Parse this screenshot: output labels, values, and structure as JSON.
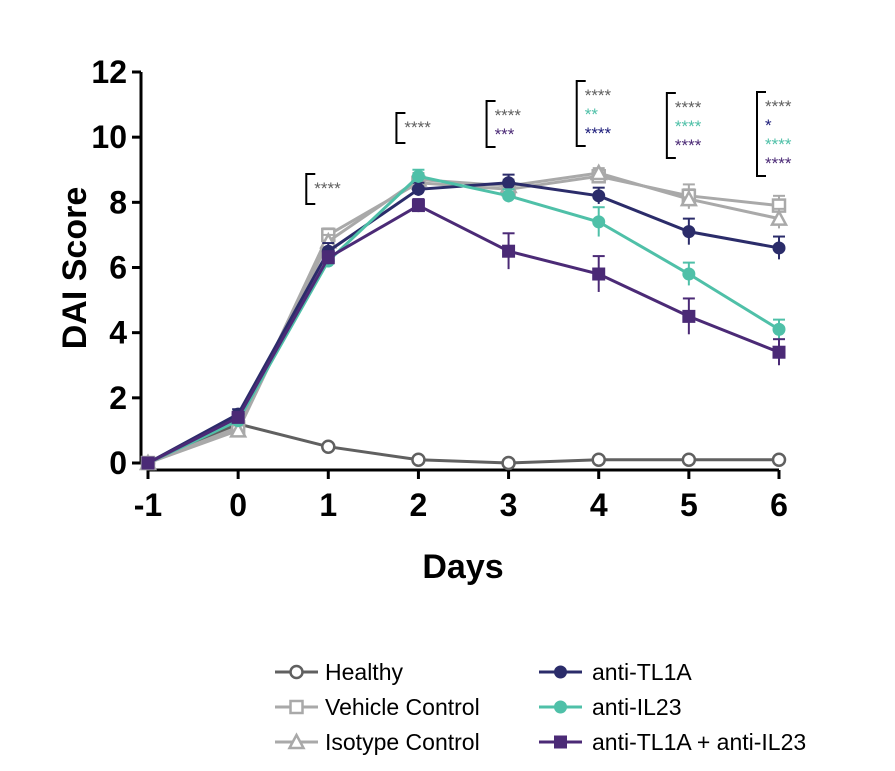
{
  "chart_data": {
    "type": "line",
    "xlabel": "Days",
    "ylabel": "DAI Score",
    "x_ticks": [
      "-1",
      "0",
      "1",
      "2",
      "3",
      "4",
      "5",
      "6"
    ],
    "y_ticks": [
      "0",
      "2",
      "4",
      "6",
      "8",
      "10",
      "12"
    ],
    "xlim": [
      -1,
      6
    ],
    "ylim": [
      0,
      12
    ],
    "x": [
      -1,
      0,
      1,
      2,
      3,
      4,
      5,
      6
    ],
    "series": [
      {
        "name": "Healthy",
        "color": "#606060",
        "marker": "circle-open",
        "values": [
          0,
          1.2,
          0.5,
          0.1,
          0,
          0.1,
          0.1,
          0.1
        ],
        "errors": [
          0,
          0,
          0,
          0,
          0,
          0,
          0,
          0
        ]
      },
      {
        "name": "Vehicle Control",
        "color": "#a9a9a9",
        "marker": "square-open",
        "values": [
          0,
          1.1,
          7.0,
          8.6,
          8.4,
          8.8,
          8.2,
          7.9
        ],
        "errors": [
          0,
          0.15,
          0.2,
          0.2,
          0.2,
          0.15,
          0.35,
          0.3
        ]
      },
      {
        "name": "Isotype Control",
        "color": "#a9a9a9",
        "marker": "triangle-open",
        "values": [
          0,
          1.0,
          6.8,
          8.7,
          8.5,
          8.9,
          8.1,
          7.5
        ],
        "errors": [
          0,
          0.15,
          0.2,
          0.2,
          0.2,
          0.15,
          0.3,
          0.3
        ]
      },
      {
        "name": "anti-TL1A",
        "color": "#2b2c6a",
        "marker": "circle-filled",
        "values": [
          0,
          1.5,
          6.5,
          8.4,
          8.6,
          8.2,
          7.1,
          6.6
        ],
        "errors": [
          0,
          0.15,
          0.25,
          0.2,
          0.25,
          0.25,
          0.4,
          0.35
        ]
      },
      {
        "name": "anti-IL23",
        "color": "#4fc0a8",
        "marker": "circle-filled",
        "values": [
          0,
          1.3,
          6.2,
          8.8,
          8.2,
          7.4,
          5.8,
          4.1
        ],
        "errors": [
          0,
          0.15,
          0.2,
          0.2,
          0.2,
          0.45,
          0.35,
          0.3
        ]
      },
      {
        "name": "anti-TL1A + anti-IL23",
        "color": "#4b2a76",
        "marker": "square-filled",
        "values": [
          0,
          1.4,
          6.3,
          7.9,
          6.5,
          5.8,
          4.5,
          3.4
        ],
        "errors": [
          0,
          0.15,
          0.2,
          0.2,
          0.55,
          0.55,
          0.55,
          0.4
        ]
      }
    ],
    "significance": [
      {
        "day": 1,
        "marks": [
          {
            "text": "****",
            "color": "#606060"
          }
        ]
      },
      {
        "day": 2,
        "marks": [
          {
            "text": "****",
            "color": "#606060"
          }
        ]
      },
      {
        "day": 3,
        "marks": [
          {
            "text": "****",
            "color": "#606060"
          },
          {
            "text": "***",
            "color": "#4b2a76"
          }
        ]
      },
      {
        "day": 4,
        "marks": [
          {
            "text": "****",
            "color": "#606060"
          },
          {
            "text": "**",
            "color": "#4fc0a8"
          },
          {
            "text": "****",
            "color": "#1c1c7a"
          }
        ]
      },
      {
        "day": 5,
        "marks": [
          {
            "text": "****",
            "color": "#606060"
          },
          {
            "text": "****",
            "color": "#4fc0a8"
          },
          {
            "text": "****",
            "color": "#4b2a76"
          }
        ]
      },
      {
        "day": 6,
        "marks": [
          {
            "text": "****",
            "color": "#606060"
          },
          {
            "text": "*",
            "color": "#1c1c7a"
          },
          {
            "text": "****",
            "color": "#4fc0a8"
          },
          {
            "text": "****",
            "color": "#4b2a76"
          }
        ]
      }
    ],
    "legend": {
      "position": "bottom"
    }
  }
}
